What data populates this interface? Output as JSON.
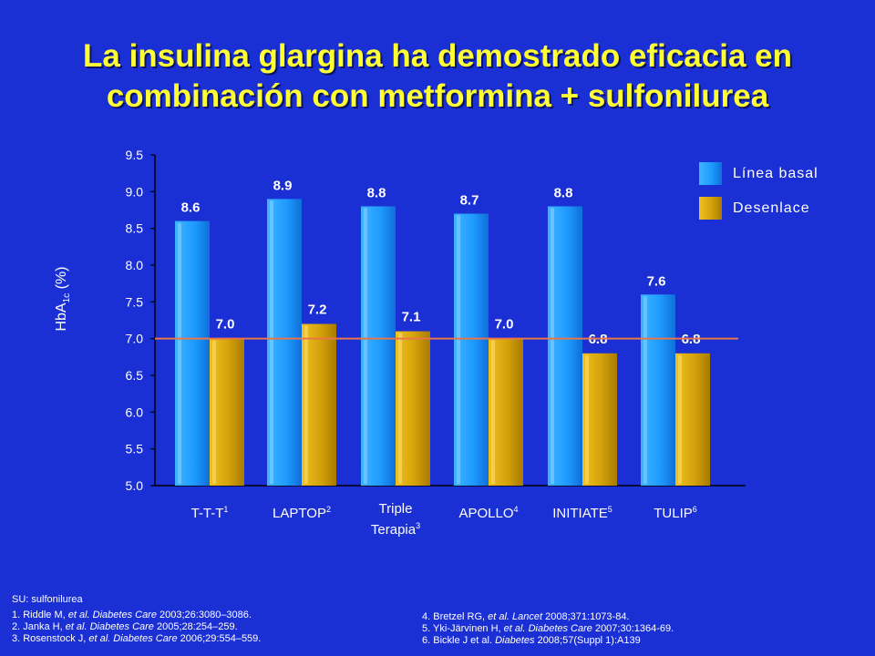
{
  "title_line1": "La insulina glargina ha demostrado eficacia en",
  "title_line2": "combinación con metformina + sulfonilurea",
  "y_axis": {
    "label": "HbA",
    "label_sub": "1c",
    "label_suffix": " (%)"
  },
  "legend": [
    {
      "label": "Línea basal",
      "color": "#1e9bff"
    },
    {
      "label": "Desenlace",
      "color": "#d4a10a"
    }
  ],
  "categories": [
    {
      "name": "T-T-T",
      "ref": "1"
    },
    {
      "name": "LAPTOP",
      "ref": "2"
    },
    {
      "name": "Triple",
      "name2": "Terapia",
      "ref": "3"
    },
    {
      "name": "APOLLO",
      "ref": "4"
    },
    {
      "name": "INITIATE",
      "ref": "5"
    },
    {
      "name": "TULIP",
      "ref": "6"
    }
  ],
  "chart_data": {
    "type": "bar",
    "categories": [
      "T-T-T",
      "LAPTOP",
      "Triple Terapia",
      "APOLLO",
      "INITIATE",
      "TULIP"
    ],
    "series": [
      {
        "name": "Línea basal",
        "values": [
          8.6,
          8.9,
          8.8,
          8.7,
          8.8,
          7.6
        ],
        "labels": [
          "8.6",
          "8.9",
          "8.8",
          "8.7",
          "8.8",
          "7.6"
        ]
      },
      {
        "name": "Desenlace",
        "values": [
          7.0,
          7.2,
          7.1,
          7.0,
          6.8,
          6.8
        ],
        "labels": [
          "7.0",
          "7.2",
          "7.1",
          "7.0",
          "6.8",
          "6.8"
        ]
      }
    ],
    "ylim": [
      5.0,
      9.5
    ],
    "yticks": [
      "5.0",
      "5.5",
      "6.0",
      "6.5",
      "7.0",
      "7.5",
      "8.0",
      "8.5",
      "9.0",
      "9.5"
    ],
    "reference_line": 7.0,
    "reference_color": "#e8764a"
  },
  "footnotes": {
    "su": "SU: sulfonilurea",
    "left": [
      {
        "pre": "1. Riddle M, ",
        "it": "et al. Diabetes Care",
        "post": " 2003;26:3080–3086."
      },
      {
        "pre": "2. Janka H, ",
        "it": "et al. Diabetes Care",
        "post": " 2005;28:254–259."
      },
      {
        "pre": "3. Rosenstock J, ",
        "it": "et al. Diabetes Care",
        "post": " 2006;29:554–559."
      }
    ],
    "right": [
      {
        "pre": "4. Bretzel RG, ",
        "it": "et al. Lancet",
        "post": " 2008;371:1073-84."
      },
      {
        "pre": "5. Yki-Järvinen H, ",
        "it": "et al. Diabetes Care",
        "post": " 2007;30:1364-69."
      },
      {
        "pre": "6. Bickle J et al. ",
        "it": "Diabetes",
        "post": " 2008;57(Suppl 1):A139"
      }
    ]
  }
}
